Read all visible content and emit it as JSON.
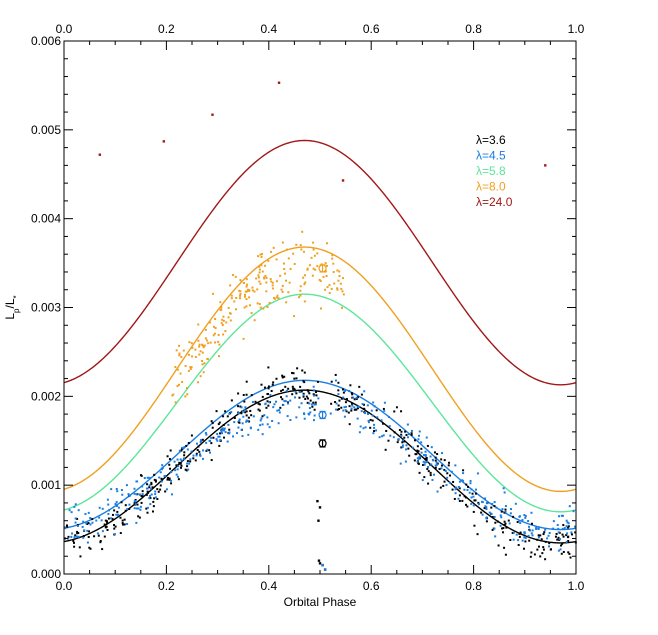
{
  "chart_data": {
    "type": "scatter",
    "title": "",
    "xlabel": "Orbital Phase",
    "ylabel": "L_p/L_*",
    "ylabel_main": "L",
    "ylabel_sub1": "p",
    "ylabel_mid": "/L",
    "ylabel_sub2": "*",
    "xlim": [
      0.0,
      1.0
    ],
    "ylim": [
      0.0,
      0.006
    ],
    "xticks": [
      0.0,
      0.2,
      0.4,
      0.6,
      0.8,
      1.0
    ],
    "xtick_labels": [
      "0.0",
      "0.2",
      "0.4",
      "0.6",
      "0.8",
      "1.0"
    ],
    "yticks": [
      0.0,
      0.001,
      0.002,
      0.003,
      0.004,
      0.005,
      0.006
    ],
    "ytick_labels": [
      "0.000",
      "0.001",
      "0.002",
      "0.003",
      "0.004",
      "0.005",
      "0.006"
    ],
    "grid": false,
    "legend_position": "top-right",
    "series": [
      {
        "name": "λ=3.6",
        "color": "#000000",
        "model": {
          "base": 0.00035,
          "amp": 0.00172,
          "phase_peak": 0.47
        }
      },
      {
        "name": "λ=4.5",
        "color": "#1a7ee0",
        "model": {
          "base": 0.0005,
          "amp": 0.00168,
          "phase_peak": 0.47
        }
      },
      {
        "name": "λ=5.8",
        "color": "#5ce69a",
        "model": {
          "base": 0.0007,
          "amp": 0.00245,
          "phase_peak": 0.47
        }
      },
      {
        "name": "λ=8.0",
        "color": "#f0a020",
        "model": {
          "base": 0.00093,
          "amp": 0.00275,
          "phase_peak": 0.47
        }
      },
      {
        "name": "λ=24.0",
        "color": "#a01818",
        "model": {
          "base": 0.00213,
          "amp": 0.00275,
          "phase_peak": 0.47
        }
      }
    ],
    "scatter_groups": [
      {
        "series": "λ=3.6",
        "color": "#000000",
        "segments": [
          {
            "x0": 0.0,
            "x1": 0.5,
            "n": 260,
            "noise": 0.00012
          },
          {
            "x0": 0.52,
            "x1": 1.0,
            "n": 220,
            "noise": 0.00012
          }
        ],
        "outliers": [
          [
            0.495,
            0.00082
          ],
          [
            0.5,
            0.00075
          ],
          [
            0.497,
            0.0006
          ],
          [
            0.5,
            0.00012
          ],
          [
            0.505,
            0.0001
          ],
          [
            0.51,
            5e-05
          ],
          [
            0.498,
            0.00015
          ]
        ]
      },
      {
        "series": "λ=4.5",
        "color": "#1a7ee0",
        "segments": [
          {
            "x0": 0.0,
            "x1": 0.5,
            "n": 240,
            "noise": 0.00011,
            "offset": -0.0003
          },
          {
            "x0": 0.52,
            "x1": 1.0,
            "n": 220,
            "noise": 0.00011,
            "offset": -0.0002
          }
        ],
        "outliers": [
          [
            0.51,
            5e-05
          ],
          [
            0.505,
            0.0001
          ]
        ]
      },
      {
        "series": "λ=8.0",
        "color": "#f0a020",
        "segments": [
          {
            "x0": 0.21,
            "x1": 0.55,
            "n": 240,
            "noise": 0.00017,
            "offset": -0.00025
          }
        ],
        "outliers": []
      },
      {
        "series": "λ=24.0",
        "color": "#a01818",
        "segments": [],
        "outliers": [
          [
            0.07,
            0.00472
          ],
          [
            0.195,
            0.00487
          ],
          [
            0.29,
            0.00517
          ],
          [
            0.42,
            0.00553
          ],
          [
            0.545,
            0.00443
          ],
          [
            0.94,
            0.0046
          ]
        ]
      }
    ],
    "error_points": [
      {
        "series": "λ=3.6",
        "color": "#000000",
        "x": 0.505,
        "y": 0.00147,
        "err": 4e-05
      },
      {
        "series": "λ=4.5",
        "color": "#1a7ee0",
        "x": 0.505,
        "y": 0.00179,
        "err": 4e-05
      },
      {
        "series": "λ=8.0",
        "color": "#f0a020",
        "x": 0.505,
        "y": 0.00344,
        "err": 4e-05
      }
    ]
  }
}
